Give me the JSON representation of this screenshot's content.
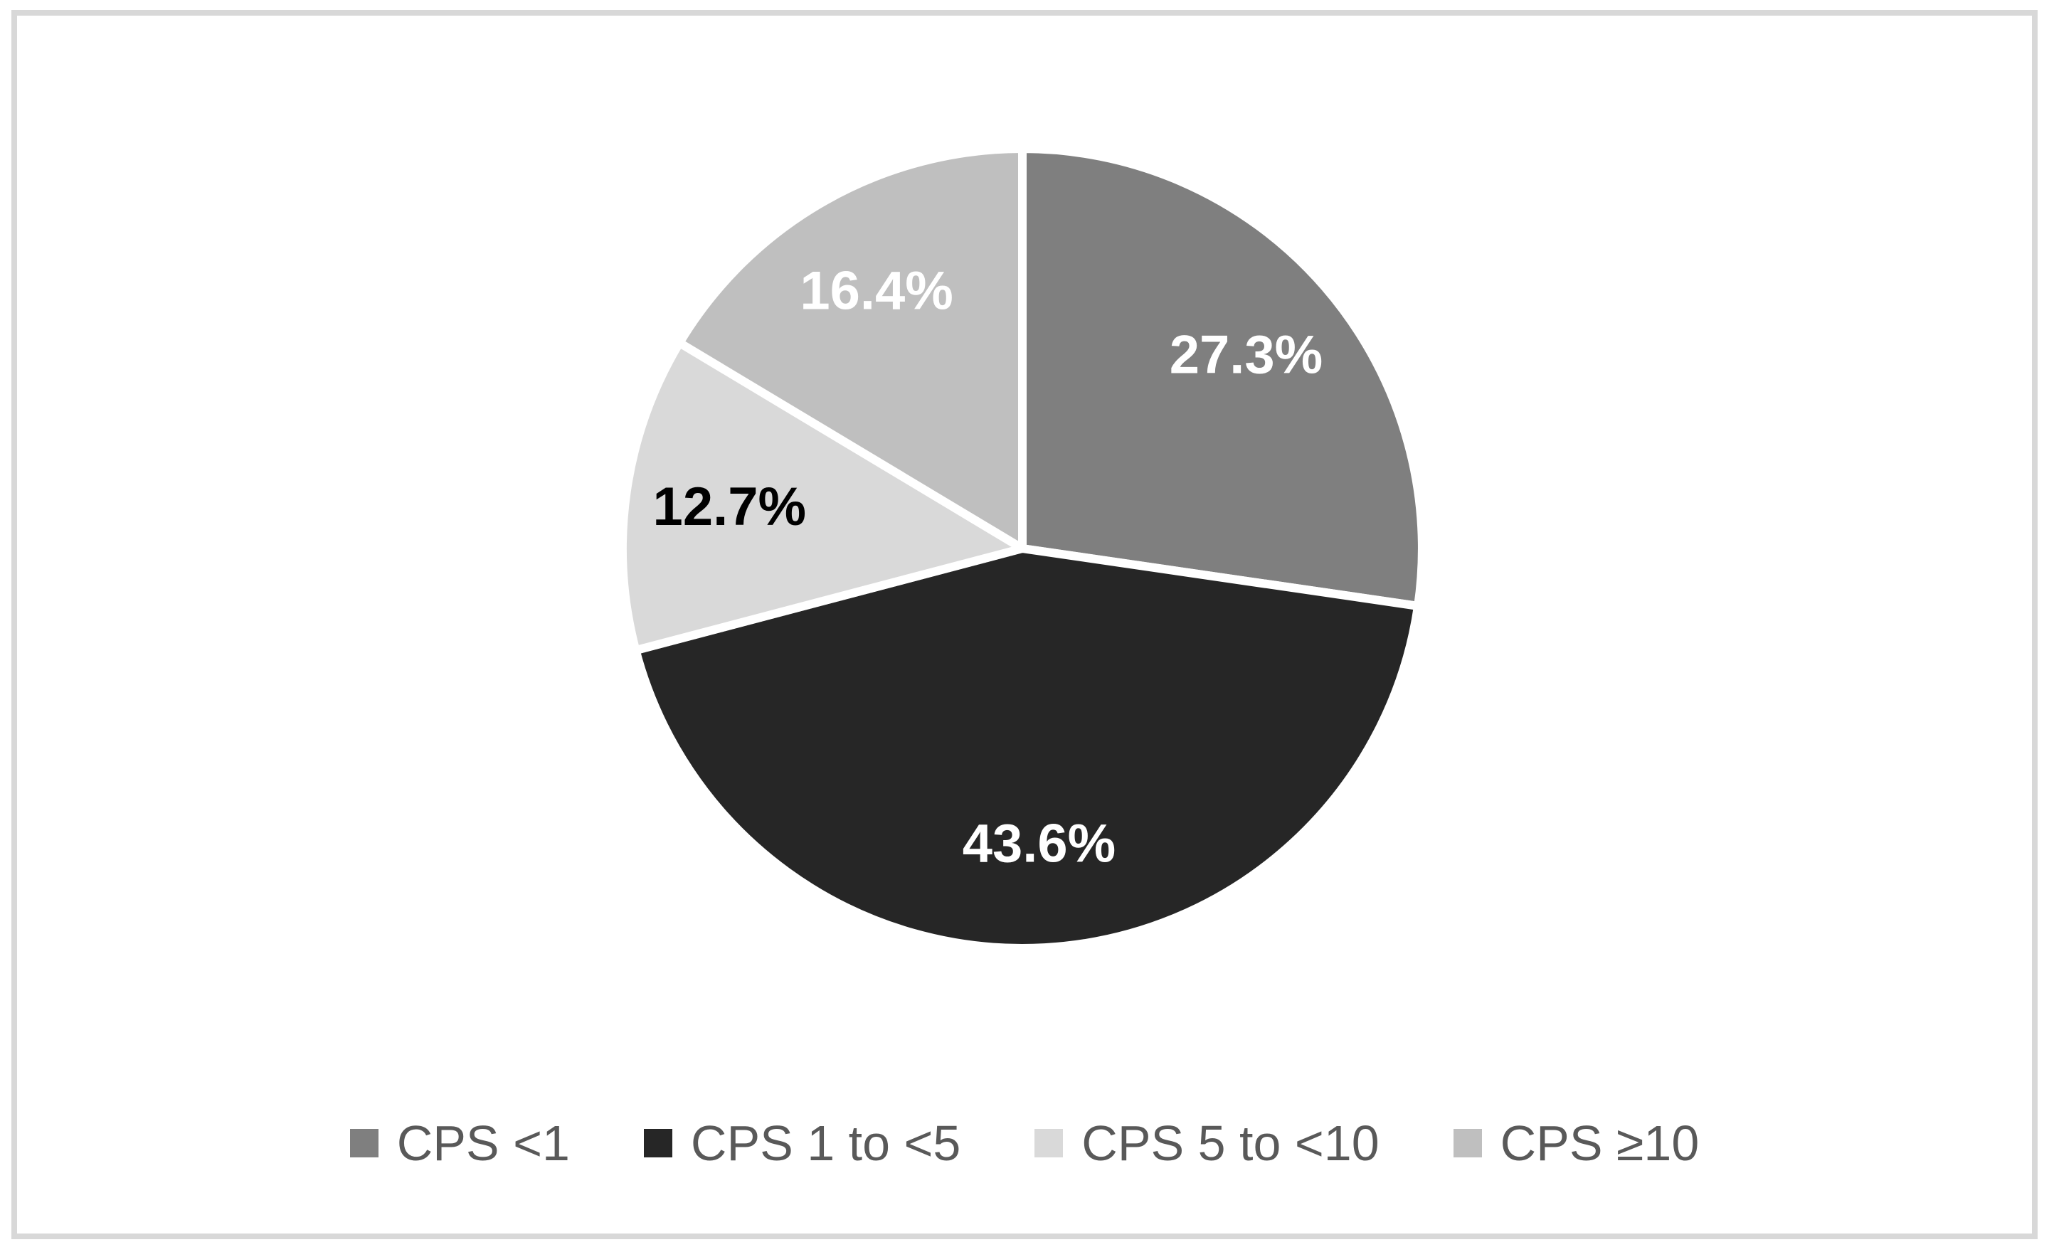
{
  "frame": {
    "border_color": "#d8d8d8",
    "background_color": "#ffffff"
  },
  "chart_data": {
    "type": "pie",
    "title": "",
    "categories": [
      "CPS <1",
      "CPS 1 to <5",
      "CPS 5 to <10",
      "CPS ≥10"
    ],
    "values": [
      27.3,
      43.6,
      12.7,
      16.4
    ],
    "data_labels": [
      "27.3%",
      "43.6%",
      "12.7%",
      "16.4%"
    ],
    "slice_colors": [
      "#7f7f7f",
      "#262626",
      "#d9d9d9",
      "#bfbfbf"
    ],
    "data_label_colors": [
      "#ffffff",
      "#ffffff",
      "#000000",
      "#ffffff"
    ],
    "start_angle_deg": 0,
    "direction": "clockwise",
    "slice_separator_color": "#ffffff",
    "legend_position": "bottom",
    "legend_text_color": "#595959",
    "legend": {
      "items": [
        {
          "label": "CPS <1",
          "color": "#7f7f7f"
        },
        {
          "label": "CPS 1 to <5",
          "color": "#262626"
        },
        {
          "label": "CPS 5 to <10",
          "color": "#d9d9d9"
        },
        {
          "label": "CPS ≥10",
          "color": "#bfbfbf"
        }
      ]
    }
  }
}
